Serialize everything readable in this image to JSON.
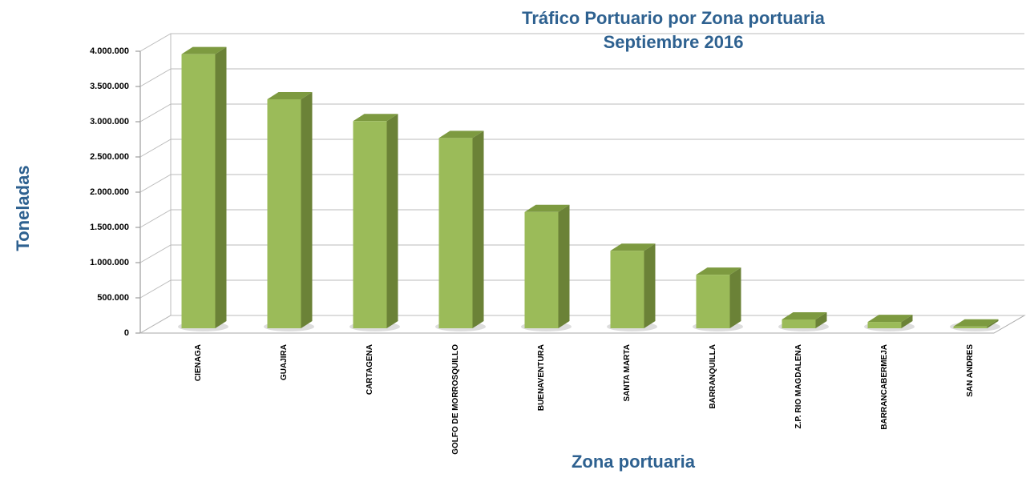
{
  "chart_data": {
    "type": "bar3d",
    "title": "Tráfico Portuario por Zona portuaria",
    "subtitle": "Septiembre 2016",
    "x_label": "Zona portuaria",
    "y_label": "Toneladas",
    "categories": [
      "CIENAGA",
      "GUAJIRA",
      "CARTAGENA",
      "GOLFO DE MORROSQUILLO",
      "BUENAVENTURA",
      "SANTA MARTA",
      "BARRANQUILLA",
      "Z.P. RIO MAGDALENA",
      "BARRANCABERMEJA",
      "SAN ANDRES"
    ],
    "values": [
      3890000,
      3250000,
      2940000,
      2700000,
      1650000,
      1100000,
      760000,
      125000,
      90000,
      25000
    ],
    "color": "#9bbb59",
    "ylim": [
      0,
      4000000
    ],
    "yticks": [
      0,
      {
        "value": 500000,
        "label": "500.000"
      },
      {
        "value": 1000000,
        "label": "1.000.000"
      },
      {
        "value": 1500000,
        "label": "1.500.000"
      },
      {
        "value": 2000000,
        "label": "2.000.000"
      },
      {
        "value": 2500000,
        "label": "2.500.000"
      },
      {
        "value": 3000000,
        "label": "3.000.000"
      },
      {
        "value": 3500000,
        "label": "3.500.000"
      },
      {
        "value": 4000000,
        "label": "4.000.000"
      }
    ],
    "grid": true
  }
}
